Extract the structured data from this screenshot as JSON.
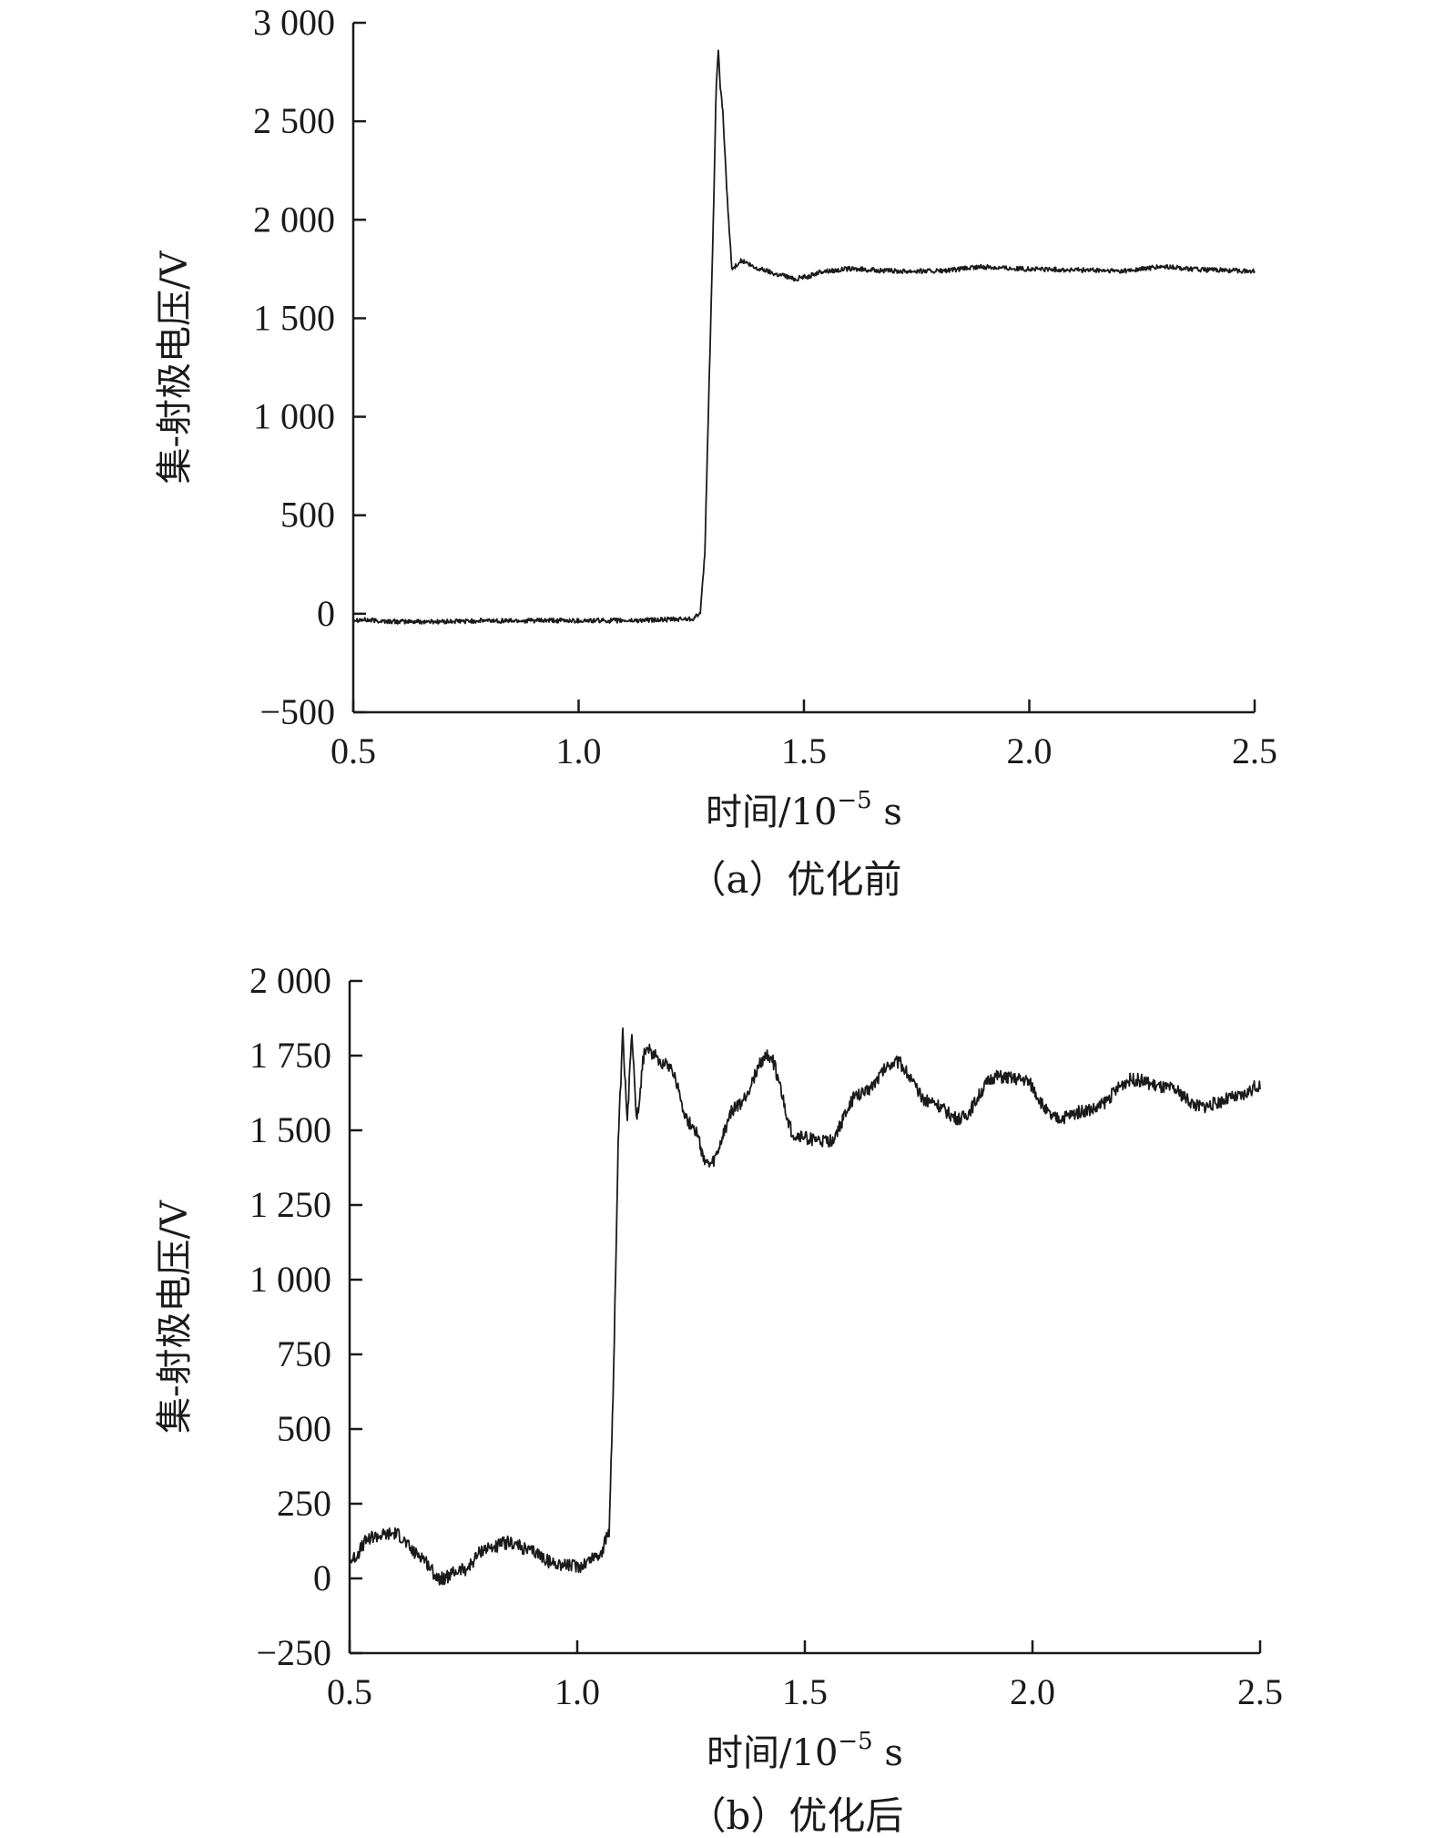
{
  "chart_data": [
    {
      "type": "line",
      "caption": "（a）优化前",
      "xlabel": "时间/10",
      "xlabel_exp": "−5",
      "xlabel_unit": " s",
      "ylabel": "集-射极电压/V",
      "xlim": [
        0.5,
        2.5
      ],
      "ylim": [
        -500,
        3000
      ],
      "xticks": [
        0.5,
        1.0,
        1.5,
        2.0,
        2.5
      ],
      "xtick_labels": [
        "0.5",
        "1.0",
        "1.5",
        "2.0",
        "2.5"
      ],
      "yticks": [
        -500,
        0,
        500,
        1000,
        1500,
        2000,
        2500,
        3000
      ],
      "ytick_labels": [
        "−500",
        "0",
        "500",
        "1 000",
        "1 500",
        "2 000",
        "2 500",
        "3 000"
      ],
      "grid": false,
      "series": [
        {
          "x": [
            0.5,
            0.6,
            0.7,
            0.8,
            0.9,
            1.0,
            1.1,
            1.2,
            1.25,
            1.27,
            1.28,
            1.29,
            1.3,
            1.305,
            1.31,
            1.315,
            1.32,
            1.33,
            1.34,
            1.36,
            1.4,
            1.45,
            1.48,
            1.5,
            1.55,
            1.6,
            1.7,
            1.8,
            1.9,
            2.0,
            2.1,
            2.2,
            2.3,
            2.4,
            2.5
          ],
          "y": [
            -30,
            -40,
            -40,
            -35,
            -35,
            -35,
            -35,
            -30,
            -25,
            0,
            300,
            1200,
            2100,
            2650,
            2850,
            2650,
            2550,
            2100,
            1750,
            1790,
            1750,
            1720,
            1700,
            1710,
            1740,
            1750,
            1740,
            1740,
            1760,
            1750,
            1745,
            1740,
            1760,
            1745,
            1740
          ],
          "noise": 12
        }
      ]
    },
    {
      "type": "line",
      "caption": "（b）优化后",
      "xlabel": "时间/10",
      "xlabel_exp": "−5",
      "xlabel_unit": " s",
      "ylabel": "集-射极电压/V",
      "xlim": [
        0.5,
        2.5
      ],
      "ylim": [
        -250,
        2000
      ],
      "xticks": [
        0.5,
        1.0,
        1.5,
        2.0,
        2.5
      ],
      "xtick_labels": [
        "0.5",
        "1.0",
        "1.5",
        "2.0",
        "2.5"
      ],
      "yticks": [
        -250,
        0,
        250,
        500,
        750,
        1000,
        1250,
        1500,
        1750,
        2000
      ],
      "ytick_labels": [
        "−250",
        "0",
        "250",
        "500",
        "750",
        "1 000",
        "1 250",
        "1 500",
        "1 750",
        "2 000"
      ],
      "grid": false,
      "series": [
        {
          "x": [
            0.5,
            0.55,
            0.6,
            0.65,
            0.7,
            0.75,
            0.8,
            0.85,
            0.9,
            0.95,
            1.0,
            1.05,
            1.07,
            1.08,
            1.09,
            1.1,
            1.11,
            1.12,
            1.13,
            1.15,
            1.2,
            1.25,
            1.29,
            1.35,
            1.42,
            1.48,
            1.55,
            1.62,
            1.7,
            1.77,
            1.84,
            1.92,
            1.98,
            2.05,
            2.13,
            2.22,
            2.3,
            2.37,
            2.45,
            2.5
          ],
          "y": [
            60,
            140,
            150,
            80,
            0,
            30,
            100,
            120,
            90,
            50,
            40,
            80,
            150,
            700,
            1450,
            1820,
            1520,
            1840,
            1550,
            1770,
            1720,
            1520,
            1380,
            1580,
            1750,
            1480,
            1460,
            1620,
            1730,
            1600,
            1540,
            1680,
            1670,
            1540,
            1570,
            1670,
            1640,
            1580,
            1610,
            1650
          ],
          "noise": 22
        }
      ]
    }
  ]
}
